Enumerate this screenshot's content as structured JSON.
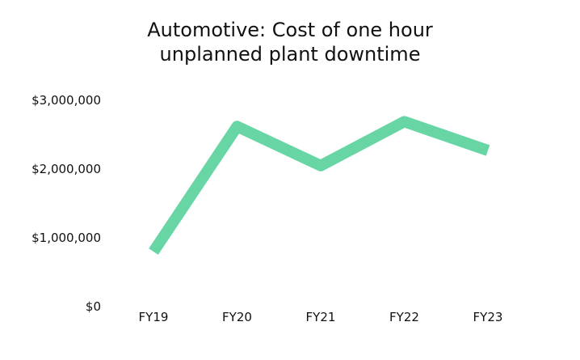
{
  "chart_data": {
    "type": "line",
    "title_lines": [
      "Automotive: Cost of one hour",
      "unplanned plant downtime"
    ],
    "categories": [
      "FY19",
      "FY20",
      "FY21",
      "FY22",
      "FY23"
    ],
    "series": [
      {
        "values": [
          800000,
          2620000,
          2050000,
          2690000,
          2270000
        ],
        "color": "#67d6a4"
      }
    ],
    "ylim": [
      0,
      3000000
    ],
    "yticks": [
      0,
      1000000,
      2000000,
      3000000
    ],
    "ytick_labels": [
      "$0",
      "$1,000,000",
      "$2,000,000",
      "$3,000,000"
    ],
    "xlabel": "",
    "ylabel": "",
    "grid": false,
    "legend": "none"
  }
}
